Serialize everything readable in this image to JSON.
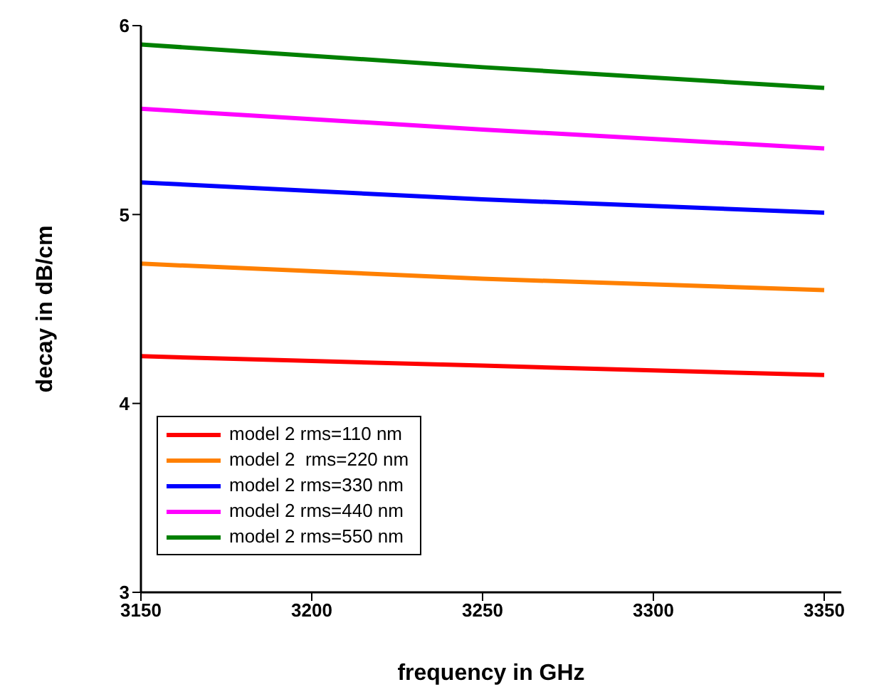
{
  "chart_data": {
    "type": "line",
    "xlabel": "frequency in GHz",
    "ylabel": "decay in dB/cm",
    "x": [
      3150,
      3250,
      3350
    ],
    "series": [
      {
        "name": "model 2 rms=110 nm",
        "color": "#ff0000",
        "values": [
          4.25,
          4.2,
          4.15
        ]
      },
      {
        "name": "model 2  rms=220 nm",
        "color": "#ff8000",
        "values": [
          4.74,
          4.66,
          4.6
        ]
      },
      {
        "name": "model 2 rms=330 nm",
        "color": "#0000ff",
        "values": [
          5.17,
          5.08,
          5.01
        ]
      },
      {
        "name": "model 2 rms=440 nm",
        "color": "#ff00ff",
        "values": [
          5.56,
          5.45,
          5.35
        ]
      },
      {
        "name": "model 2 rms=550 nm",
        "color": "#008000",
        "values": [
          5.9,
          5.78,
          5.67
        ]
      }
    ],
    "xlim": [
      3150,
      3355
    ],
    "xticks": [
      3150,
      3200,
      3250,
      3300,
      3350
    ],
    "ylim": [
      3,
      6
    ],
    "yticks": [
      3,
      4,
      5,
      6
    ],
    "grid": false,
    "legend": "bottom left",
    "marker": "none",
    "line_style": "solid"
  }
}
